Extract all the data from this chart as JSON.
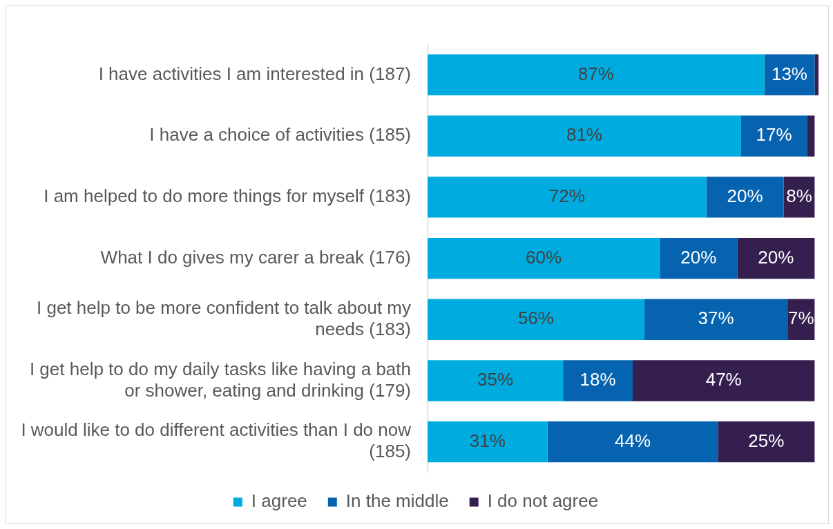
{
  "chart_data": {
    "type": "bar",
    "orientation": "horizontal",
    "stacked": true,
    "xlim": [
      0,
      101
    ],
    "tick_labels": "y",
    "grid": false,
    "legend": "bottom",
    "categories": [
      "I have activities I am interested in (187)",
      "I have a choice of activities (185)",
      "I am helped to do more things for myself (183)",
      "What I do gives my carer a break (176)",
      "I get help to be more confident to talk about my needs (183)",
      "I get help to do my daily tasks like having a bath or shower, eating and drinking (179)",
      "I would like to do different activities than I do now (185)"
    ],
    "series": [
      {
        "name": "I agree",
        "color": "#00abe0",
        "values": [
          87,
          81,
          72,
          60,
          56,
          35,
          31
        ],
        "value_labels": [
          "87%",
          "81%",
          "72%",
          "60%",
          "56%",
          "35%",
          "31%"
        ]
      },
      {
        "name": "In the middle",
        "color": "#0563b0",
        "values": [
          13,
          17,
          20,
          20,
          37,
          18,
          44
        ],
        "value_labels": [
          "13%",
          "17%",
          "20%",
          "20%",
          "37%",
          "18%",
          "44%"
        ]
      },
      {
        "name": "I do not agree",
        "color": "#341f4f",
        "values": [
          1,
          2,
          8,
          20,
          7,
          47,
          25
        ],
        "value_labels": [
          null,
          null,
          "8%",
          "20%",
          "7%",
          "47%",
          "25%"
        ]
      }
    ]
  }
}
